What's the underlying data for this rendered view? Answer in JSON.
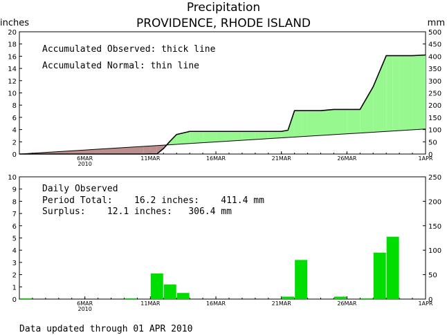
{
  "header": {
    "title": "Precipitation",
    "subtitle": "PROVIDENCE, RHODE ISLAND",
    "left_unit": "inches",
    "right_unit": "mm"
  },
  "footer": {
    "updated": "Data updated through 01 APR 2010"
  },
  "legend": {
    "observed": "Accumulated Observed: thick line",
    "normal": "Accumulated Normal: thin line"
  },
  "daily_info": {
    "heading": "Daily Observed",
    "period_total": "Period Total:    16.2 inches:    411.4 mm",
    "surplus": "Surplus:    12.1 inches:   306.4 mm"
  },
  "colors": {
    "surplus_fill": "#98f890",
    "deficit_fill": "#bc8f8f",
    "daily_bar": "#00dd00",
    "axis": "#000000"
  },
  "x_ticks": [
    {
      "day": 5,
      "label": "6MAR",
      "sub": "2010"
    },
    {
      "day": 10,
      "label": "11MAR",
      "sub": ""
    },
    {
      "day": 15,
      "label": "16MAR",
      "sub": ""
    },
    {
      "day": 20,
      "label": "21MAR",
      "sub": ""
    },
    {
      "day": 25,
      "label": "26MAR",
      "sub": ""
    },
    {
      "day": 31,
      "label": "1APR",
      "sub": ""
    }
  ],
  "chart_data": [
    {
      "type": "area",
      "x_unit": "days since 1 Mar 2010",
      "xlim": [
        0,
        31
      ],
      "ylim": [
        0,
        20
      ],
      "y_ticks": [
        0,
        2,
        4,
        6,
        8,
        10,
        12,
        14,
        16,
        18,
        20
      ],
      "y2_ticks": [
        0,
        50,
        100,
        150,
        200,
        250,
        300,
        350,
        400,
        450,
        500
      ],
      "series": [
        {
          "name": "Accumulated Observed",
          "x": [
            0,
            9.5,
            10,
            10.5,
            11,
            11.5,
            12,
            13,
            14,
            15,
            16,
            17,
            18,
            19,
            20,
            20.5,
            21,
            21.5,
            22,
            23,
            24,
            25,
            26,
            27,
            28,
            28.5,
            29,
            30,
            31
          ],
          "values": [
            0,
            0,
            0.02,
            0.02,
            0.9,
            2.1,
            3.2,
            3.7,
            3.7,
            3.7,
            3.7,
            3.7,
            3.7,
            3.7,
            3.7,
            3.9,
            7.1,
            7.1,
            7.1,
            7.1,
            7.3,
            7.3,
            7.3,
            11,
            16.1,
            16.1,
            16.1,
            16.1,
            16.2
          ]
        },
        {
          "name": "Accumulated Normal",
          "x": [
            0,
            31
          ],
          "values": [
            0,
            4.1
          ]
        }
      ]
    },
    {
      "type": "bar",
      "x_unit": "days since 1 Mar 2010",
      "xlim": [
        0,
        31
      ],
      "ylim": [
        0,
        10
      ],
      "y_ticks": [
        0,
        1,
        2,
        3,
        4,
        5,
        6,
        7,
        8,
        9,
        10
      ],
      "y2_ticks": [
        0,
        50,
        100,
        150,
        200,
        250
      ],
      "series": [
        {
          "name": "Daily Observed",
          "x": [
            0,
            8,
            10,
            11,
            12,
            20,
            21,
            24,
            26,
            27,
            28
          ],
          "values": [
            0.02,
            0.02,
            2.1,
            1.2,
            0.5,
            0.2,
            3.2,
            0.2,
            0.04,
            3.8,
            5.1
          ]
        }
      ]
    }
  ]
}
